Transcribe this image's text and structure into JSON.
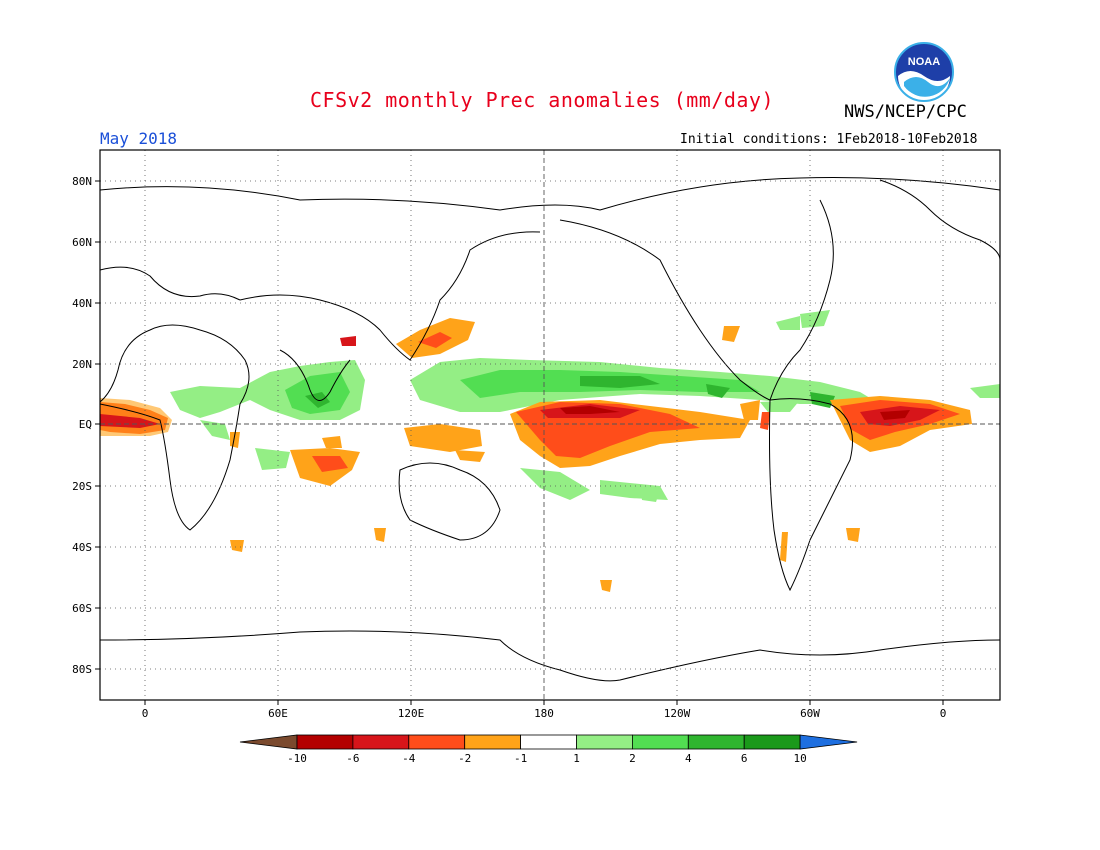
{
  "header": {
    "title": "CFSv2 monthly Prec anomalies (mm/day)",
    "organization": "NWS/NCEP/CPC",
    "month": "May 2018",
    "initial_conditions": "Initial conditions: 1Feb2018-10Feb2018",
    "logo_text": "NOAA"
  },
  "axes": {
    "lat_labels": [
      "80N",
      "60N",
      "40N",
      "20N",
      "EQ",
      "20S",
      "40S",
      "60S",
      "80S"
    ],
    "lon_labels": [
      "0",
      "60E",
      "120E",
      "180",
      "120W",
      "60W",
      "0"
    ]
  },
  "colorbar": {
    "labels": [
      "-10",
      "-6",
      "-4",
      "-2",
      "-1",
      "1",
      "2",
      "4",
      "6",
      "10"
    ],
    "colors": [
      "#7b4a2e",
      "#b30000",
      "#d7151a",
      "#ff4d1a",
      "#ffa319",
      "#ffffff",
      "#94ee85",
      "#52de52",
      "#2fb52f",
      "#1a991a",
      "#1e6fe0"
    ]
  },
  "anomaly_colors": {
    "dry_extreme": "#b30000",
    "dry_strong": "#d7151a",
    "dry_moderate": "#ff4d1a",
    "dry_weak": "#ffa319",
    "wet_weak": "#94ee85",
    "wet_moderate": "#52de52",
    "wet_strong": "#2fb52f"
  }
}
